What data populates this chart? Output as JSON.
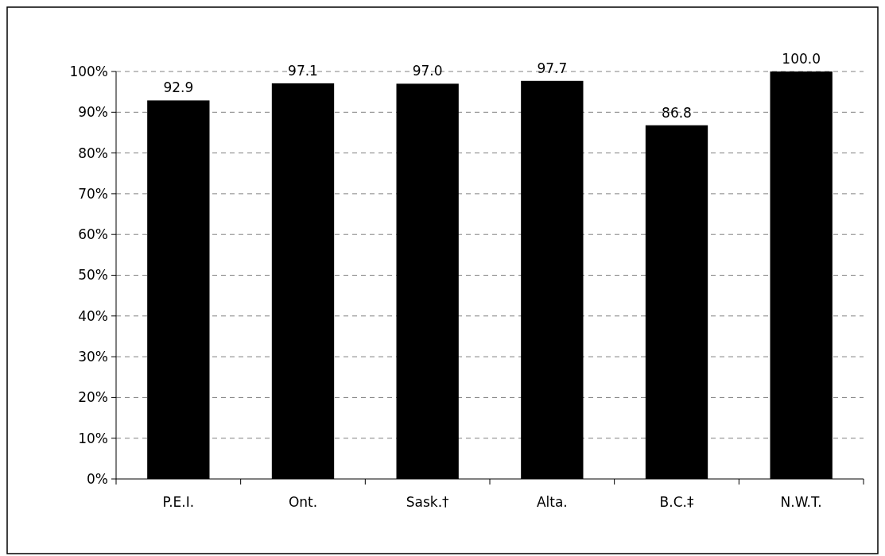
{
  "chart_data": {
    "type": "bar",
    "categories": [
      "P.E.I.",
      "Ont.",
      "Sask.†",
      "Alta.",
      "B.C.‡",
      "N.W.T."
    ],
    "values": [
      92.9,
      97.1,
      97.0,
      97.7,
      86.8,
      100.0
    ],
    "value_labels": [
      "92.9",
      "97.1",
      "97.0",
      "97.7",
      "86.8",
      "100.0"
    ],
    "color": "#000000",
    "ylim": [
      0,
      100
    ],
    "yticks": [
      {
        "value": 0,
        "label": "0%"
      },
      {
        "value": 10,
        "label": "10%"
      },
      {
        "value": 20,
        "label": "20%"
      },
      {
        "value": 30,
        "label": "30%"
      },
      {
        "value": 40,
        "label": "40%"
      },
      {
        "value": 50,
        "label": "50%"
      },
      {
        "value": 60,
        "label": "60%"
      },
      {
        "value": 70,
        "label": "70%"
      },
      {
        "value": 80,
        "label": "80%"
      },
      {
        "value": 90,
        "label": "90%"
      },
      {
        "value": 100,
        "label": "100%"
      }
    ],
    "grid": "y"
  }
}
